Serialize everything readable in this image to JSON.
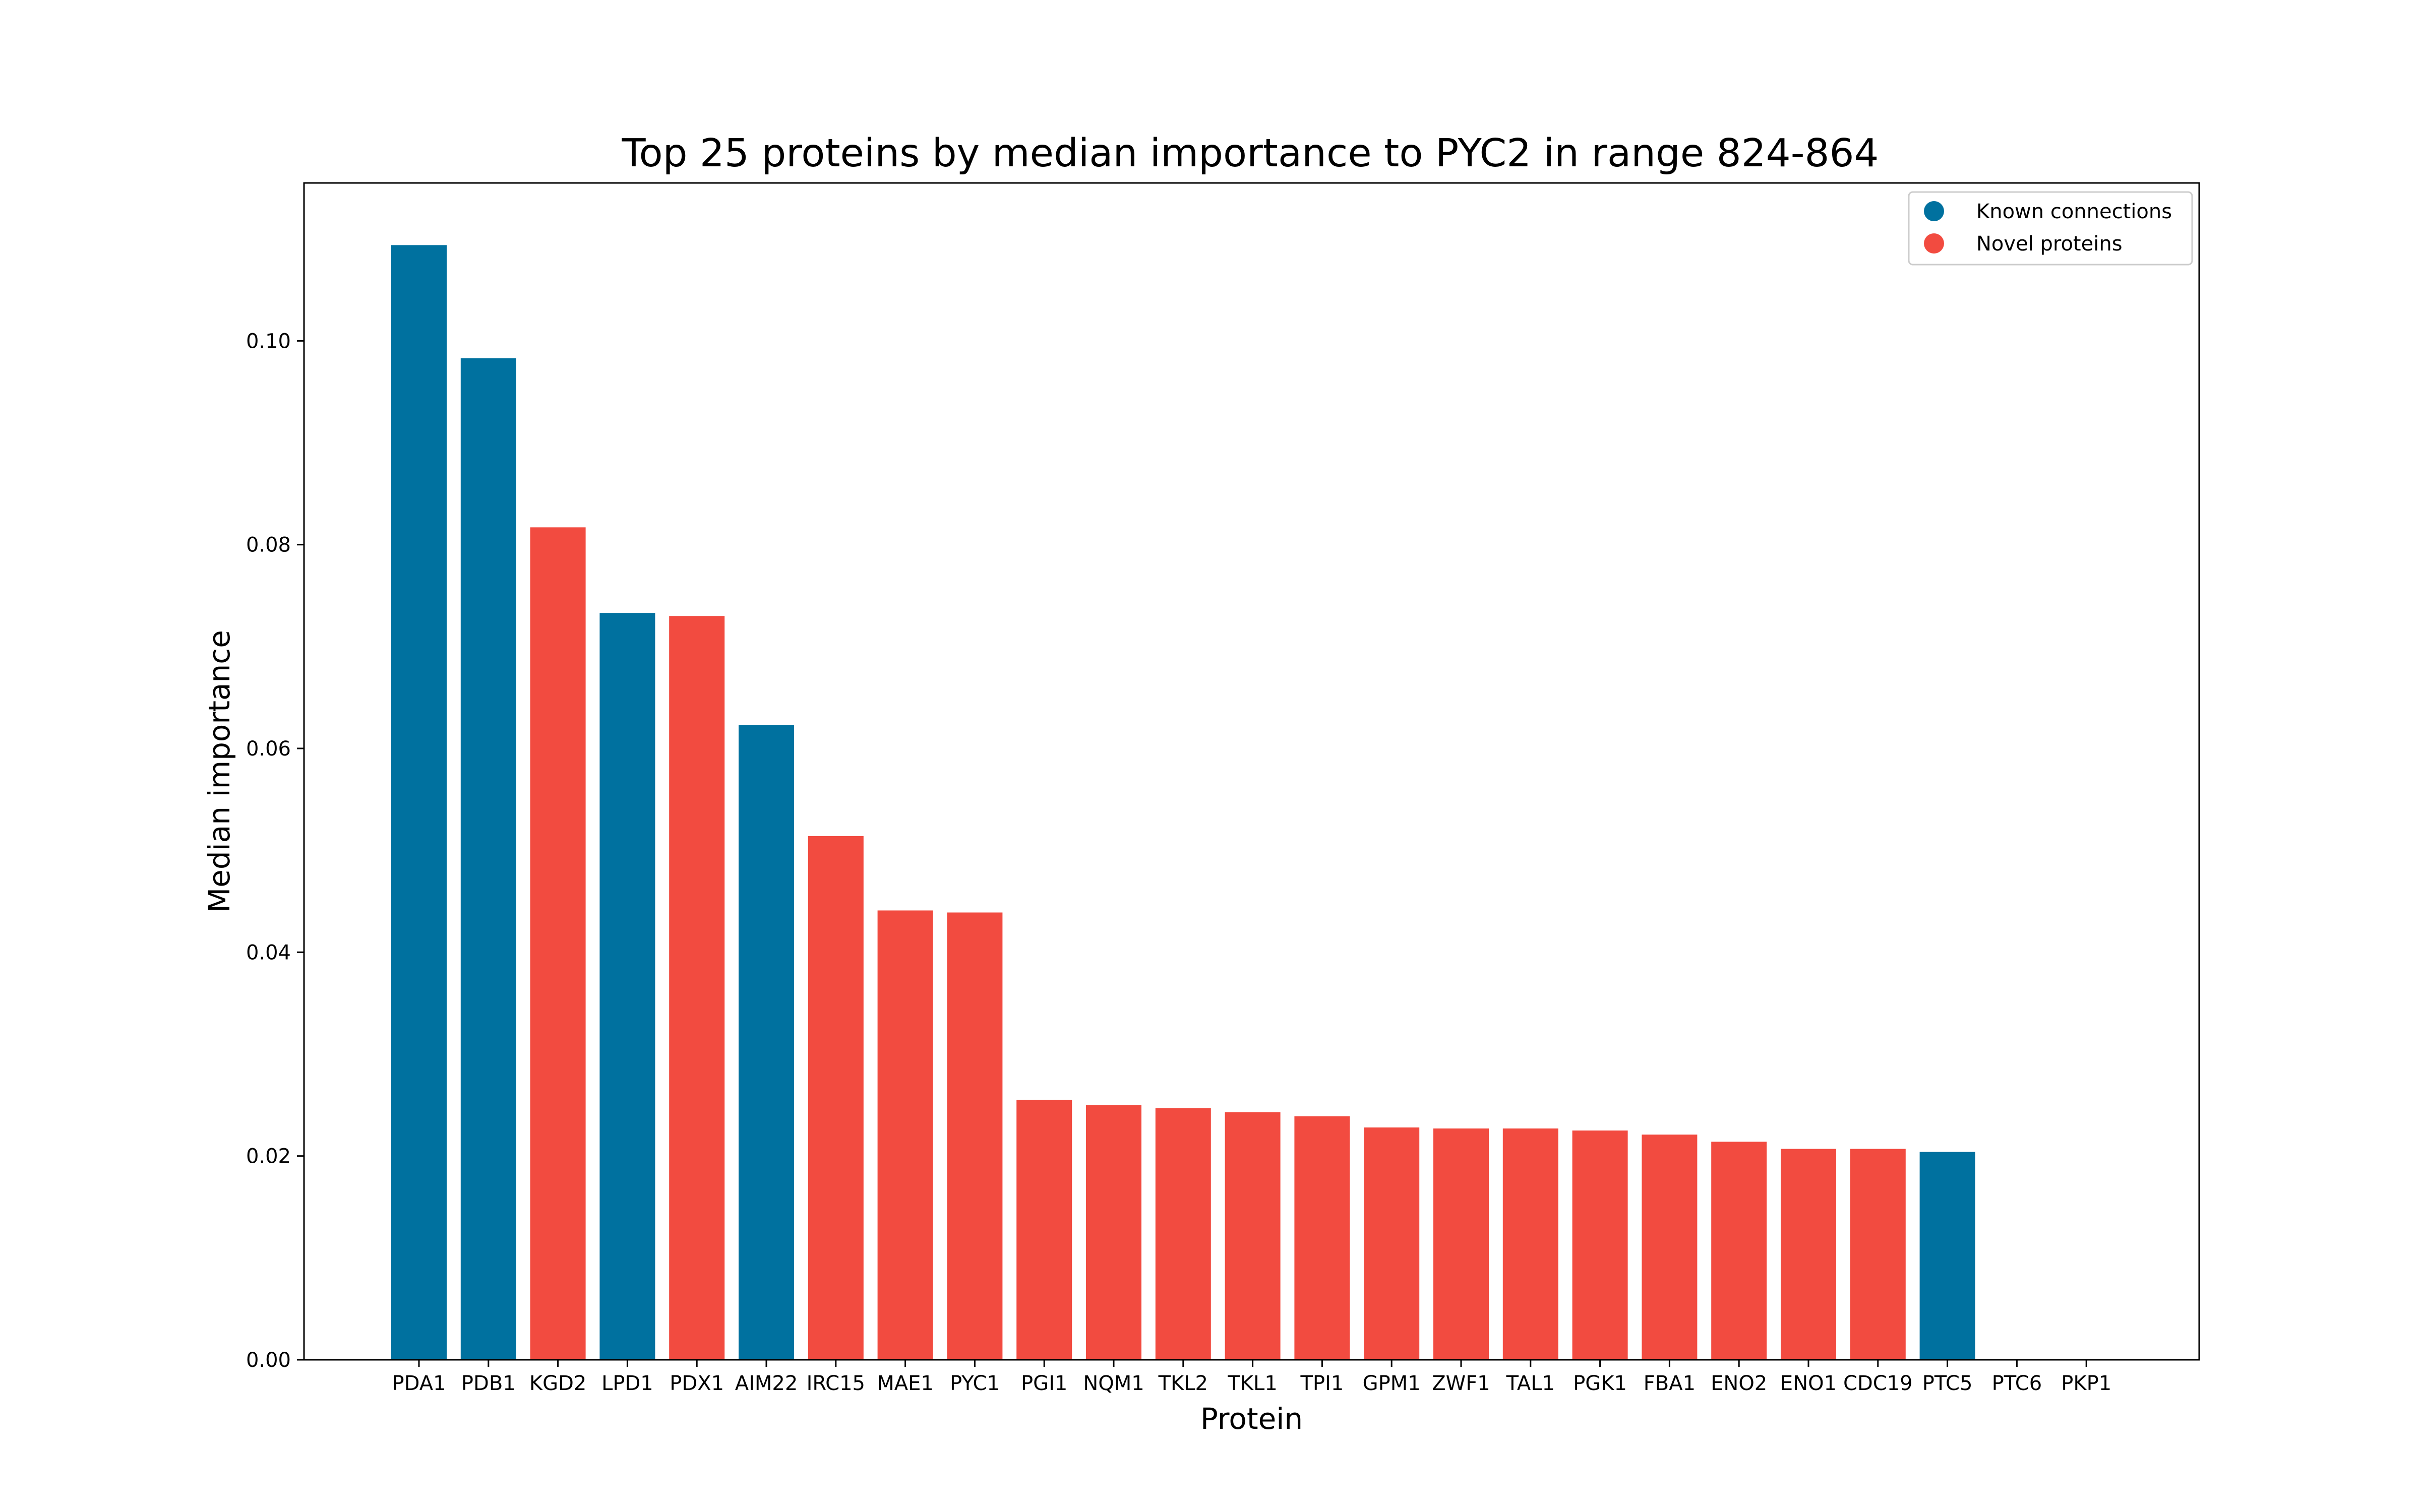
{
  "chart_data": {
    "type": "bar",
    "title": "Top 25 proteins by median importance to PYC2 in range 824-864",
    "xlabel": "Protein",
    "ylabel": "Median importance",
    "ylim": [
      0,
      0.1155
    ],
    "yticks": [
      "0.00",
      "0.02",
      "0.04",
      "0.06",
      "0.08",
      "0.10"
    ],
    "ytick_values": [
      0,
      0.02,
      0.04,
      0.06,
      0.08,
      0.1
    ],
    "grid": false,
    "legend_position": "top-right",
    "categories": [
      "PDA1",
      "PDB1",
      "KGD2",
      "LPD1",
      "PDX1",
      "AIM22",
      "IRC15",
      "MAE1",
      "PYC1",
      "PGI1",
      "NQM1",
      "TKL2",
      "TKL1",
      "TPI1",
      "GPM1",
      "ZWF1",
      "TAL1",
      "PGK1",
      "FBA1",
      "ENO2",
      "ENO1",
      "CDC19",
      "PTC5",
      "PTC6",
      "PKP1"
    ],
    "values": [
      0.1094,
      0.0983,
      0.0817,
      0.0733,
      0.073,
      0.0623,
      0.0514,
      0.0441,
      0.0439,
      0.0255,
      0.025,
      0.0247,
      0.0243,
      0.0239,
      0.0228,
      0.0227,
      0.0227,
      0.0225,
      0.0221,
      0.0214,
      0.0207,
      0.0207,
      0.0204,
      0,
      0
    ],
    "groups": [
      "known",
      "known",
      "novel",
      "known",
      "novel",
      "known",
      "novel",
      "novel",
      "novel",
      "novel",
      "novel",
      "novel",
      "novel",
      "novel",
      "novel",
      "novel",
      "novel",
      "novel",
      "novel",
      "novel",
      "novel",
      "novel",
      "known",
      "known",
      "known"
    ],
    "series": [
      {
        "key": "known",
        "name": "Known connections",
        "color": "#00719f"
      },
      {
        "key": "novel",
        "name": "Novel proteins",
        "color": "#f24b40"
      }
    ]
  }
}
